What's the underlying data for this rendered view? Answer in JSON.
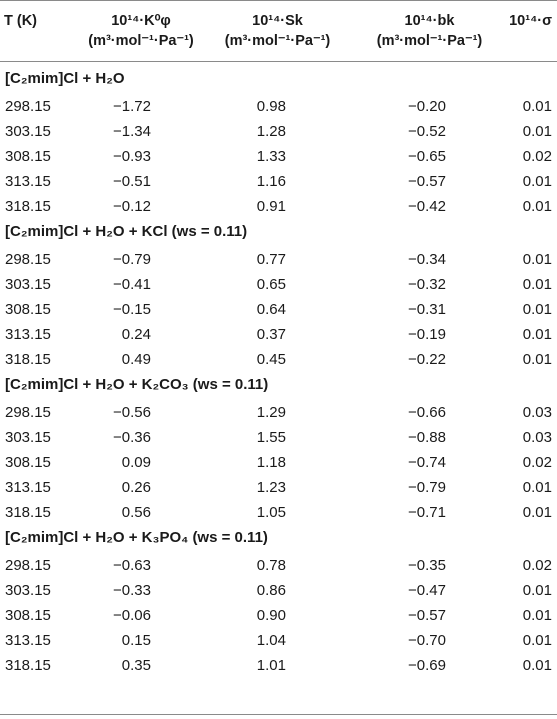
{
  "headers": {
    "t": {
      "line1": "T (K)"
    },
    "k": {
      "line1": "10¹⁴·K⁰φ",
      "line2": "(m³·mol⁻¹·Pa⁻¹)"
    },
    "s": {
      "line1": "10¹⁴·Sk",
      "line2": "(m³·mol⁻¹·Pa⁻¹)"
    },
    "b": {
      "line1": "10¹⁴·bk",
      "line2": "(m³·mol⁻¹·Pa⁻¹)"
    },
    "sigma": {
      "line1": "10¹⁴·σ"
    }
  },
  "sections": [
    {
      "title": "[C₂mim]Cl + H₂O",
      "rows": [
        {
          "T": "298.15",
          "K": "−1.72",
          "S": "0.98",
          "b": "−0.20",
          "sigma": "0.01"
        },
        {
          "T": "303.15",
          "K": "−1.34",
          "S": "1.28",
          "b": "−0.52",
          "sigma": "0.01"
        },
        {
          "T": "308.15",
          "K": "−0.93",
          "S": "1.33",
          "b": "−0.65",
          "sigma": "0.02"
        },
        {
          "T": "313.15",
          "K": "−0.51",
          "S": "1.16",
          "b": "−0.57",
          "sigma": "0.01"
        },
        {
          "T": "318.15",
          "K": "−0.12",
          "S": "0.91",
          "b": "−0.42",
          "sigma": "0.01"
        }
      ]
    },
    {
      "title": "[C₂mim]Cl + H₂O + KCl (ws = 0.11)",
      "rows": [
        {
          "T": "298.15",
          "K": "−0.79",
          "S": "0.77",
          "b": "−0.34",
          "sigma": "0.01"
        },
        {
          "T": "303.15",
          "K": "−0.41",
          "S": "0.65",
          "b": "−0.32",
          "sigma": "0.01"
        },
        {
          "T": "308.15",
          "K": "−0.15",
          "S": "0.64",
          "b": "−0.31",
          "sigma": "0.01"
        },
        {
          "T": "313.15",
          "K": "0.24",
          "S": "0.37",
          "b": "−0.19",
          "sigma": "0.01"
        },
        {
          "T": "318.15",
          "K": "0.49",
          "S": "0.45",
          "b": "−0.22",
          "sigma": "0.01"
        }
      ]
    },
    {
      "title": "[C₂mim]Cl + H₂O + K₂CO₃ (ws = 0.11)",
      "rows": [
        {
          "T": "298.15",
          "K": "−0.56",
          "S": "1.29",
          "b": "−0.66",
          "sigma": "0.03"
        },
        {
          "T": "303.15",
          "K": "−0.36",
          "S": "1.55",
          "b": "−0.88",
          "sigma": "0.03"
        },
        {
          "T": "308.15",
          "K": "0.09",
          "S": "1.18",
          "b": "−0.74",
          "sigma": "0.02"
        },
        {
          "T": "313.15",
          "K": "0.26",
          "S": "1.23",
          "b": "−0.79",
          "sigma": "0.01"
        },
        {
          "T": "318.15",
          "K": "0.56",
          "S": "1.05",
          "b": "−0.71",
          "sigma": "0.01"
        }
      ]
    },
    {
      "title": "[C₂mim]Cl + H₂O + K₃PO₄ (ws = 0.11)",
      "rows": [
        {
          "T": "298.15",
          "K": "−0.63",
          "S": "0.78",
          "b": "−0.35",
          "sigma": "0.02"
        },
        {
          "T": "303.15",
          "K": "−0.33",
          "S": "0.86",
          "b": "−0.47",
          "sigma": "0.01"
        },
        {
          "T": "308.15",
          "K": "−0.06",
          "S": "0.90",
          "b": "−0.57",
          "sigma": "0.01"
        },
        {
          "T": "313.15",
          "K": "0.15",
          "S": "1.04",
          "b": "−0.70",
          "sigma": "0.01"
        },
        {
          "T": "318.15",
          "K": "0.35",
          "S": "1.01",
          "b": "−0.69",
          "sigma": "0.01"
        }
      ]
    }
  ]
}
